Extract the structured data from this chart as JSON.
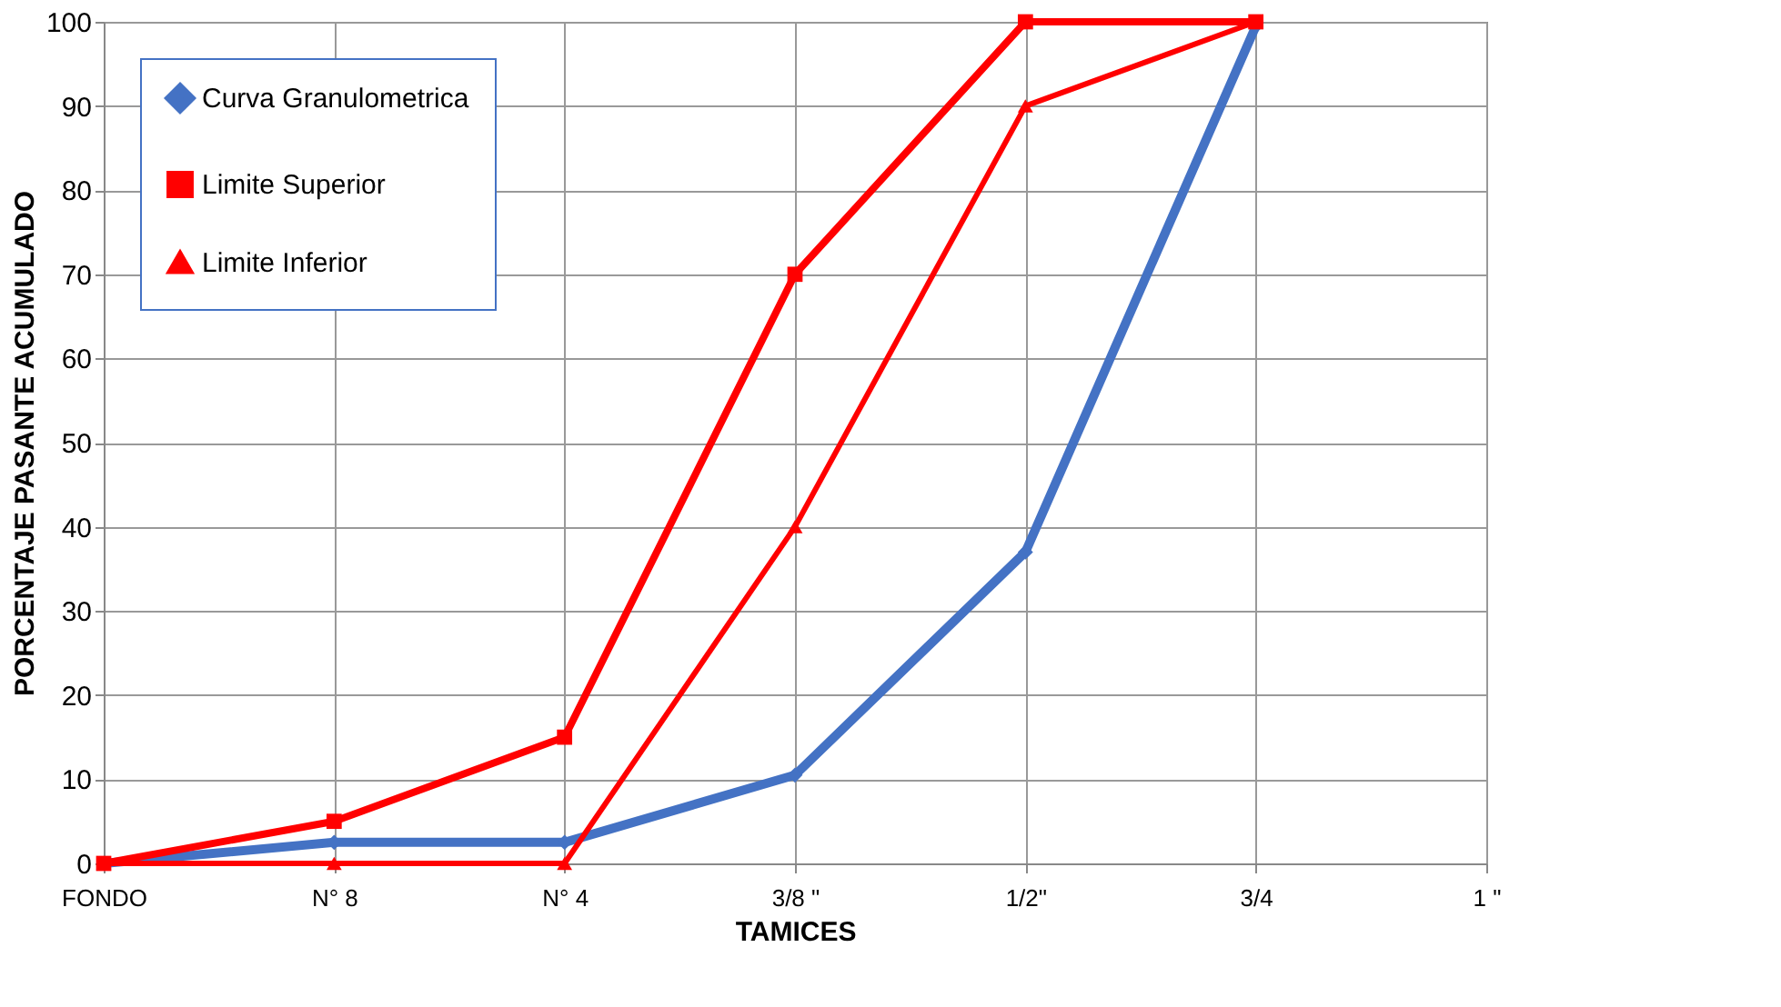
{
  "chart_data": {
    "type": "line",
    "xlabel": "TAMICES",
    "ylabel": "PORCENTAJE  PASANTE ACUMULADO",
    "categories": [
      "FONDO",
      "N° 8",
      "N° 4",
      "3/8 \"",
      "1/2\"",
      "3/4",
      "1 \""
    ],
    "series": [
      {
        "name": "Curva Granulometrica",
        "color": "#4472c4",
        "marker": "diamond",
        "values": [
          0,
          2.5,
          2.5,
          10.5,
          37,
          99.5,
          null
        ]
      },
      {
        "name": "Limite Superior",
        "color": "#ff0000",
        "marker": "square",
        "values": [
          0,
          5,
          15,
          70,
          100,
          100,
          null
        ]
      },
      {
        "name": "Limite Inferior",
        "color": "#ff0000",
        "marker": "triangle",
        "values": [
          0,
          0,
          0,
          40,
          90,
          100,
          null
        ]
      }
    ],
    "ylim": [
      0,
      100
    ],
    "yticks": [
      0,
      10,
      20,
      30,
      40,
      50,
      60,
      70,
      80,
      90,
      100
    ],
    "grid": true,
    "legend": "top left"
  }
}
